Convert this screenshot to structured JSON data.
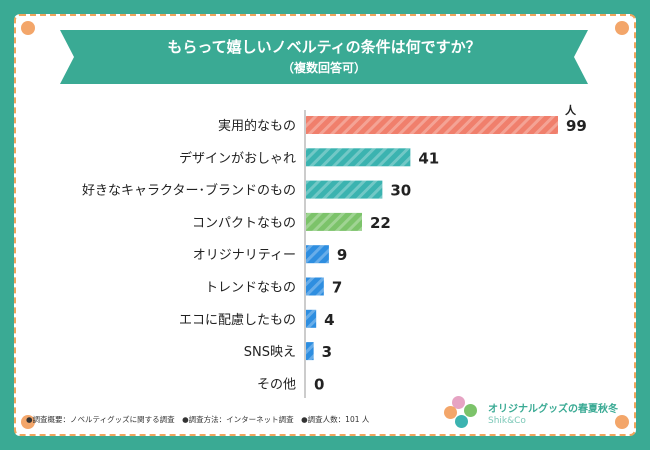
{
  "title": "もらって嬉しいノベルティの条件は何ですか？",
  "subtitle": "（複数回答可）",
  "unit": "人",
  "footnote": "●調査概要：ノベルティグッズに関する調査　●調査方法：インターネット調査　●調査人数：101 人",
  "logo": {
    "text": "オリジナルグッズの春夏秋冬",
    "sub": "Shik&Co"
  },
  "colors": {
    "frame": "#3aaa94",
    "border": "#f0a55c"
  },
  "chart_data": {
    "type": "bar",
    "orientation": "horizontal",
    "categories": [
      "実用的なもの",
      "デザインがおしゃれ",
      "好きなキャラクター･ブランドのもの",
      "コンパクトなもの",
      "オリジナリティー",
      "トレンドなもの",
      "エコに配慮したもの",
      "SNS映え",
      "その他"
    ],
    "values": [
      99,
      41,
      30,
      22,
      9,
      7,
      4,
      3,
      0
    ],
    "bar_colors": [
      "#f07f6c",
      "#3bb3b0",
      "#3bb3b0",
      "#7cc36a",
      "#2e8ee0",
      "#2e8ee0",
      "#2e8ee0",
      "#2e8ee0",
      "#2e8ee0"
    ],
    "xlim": [
      0,
      99
    ],
    "grid": false
  }
}
